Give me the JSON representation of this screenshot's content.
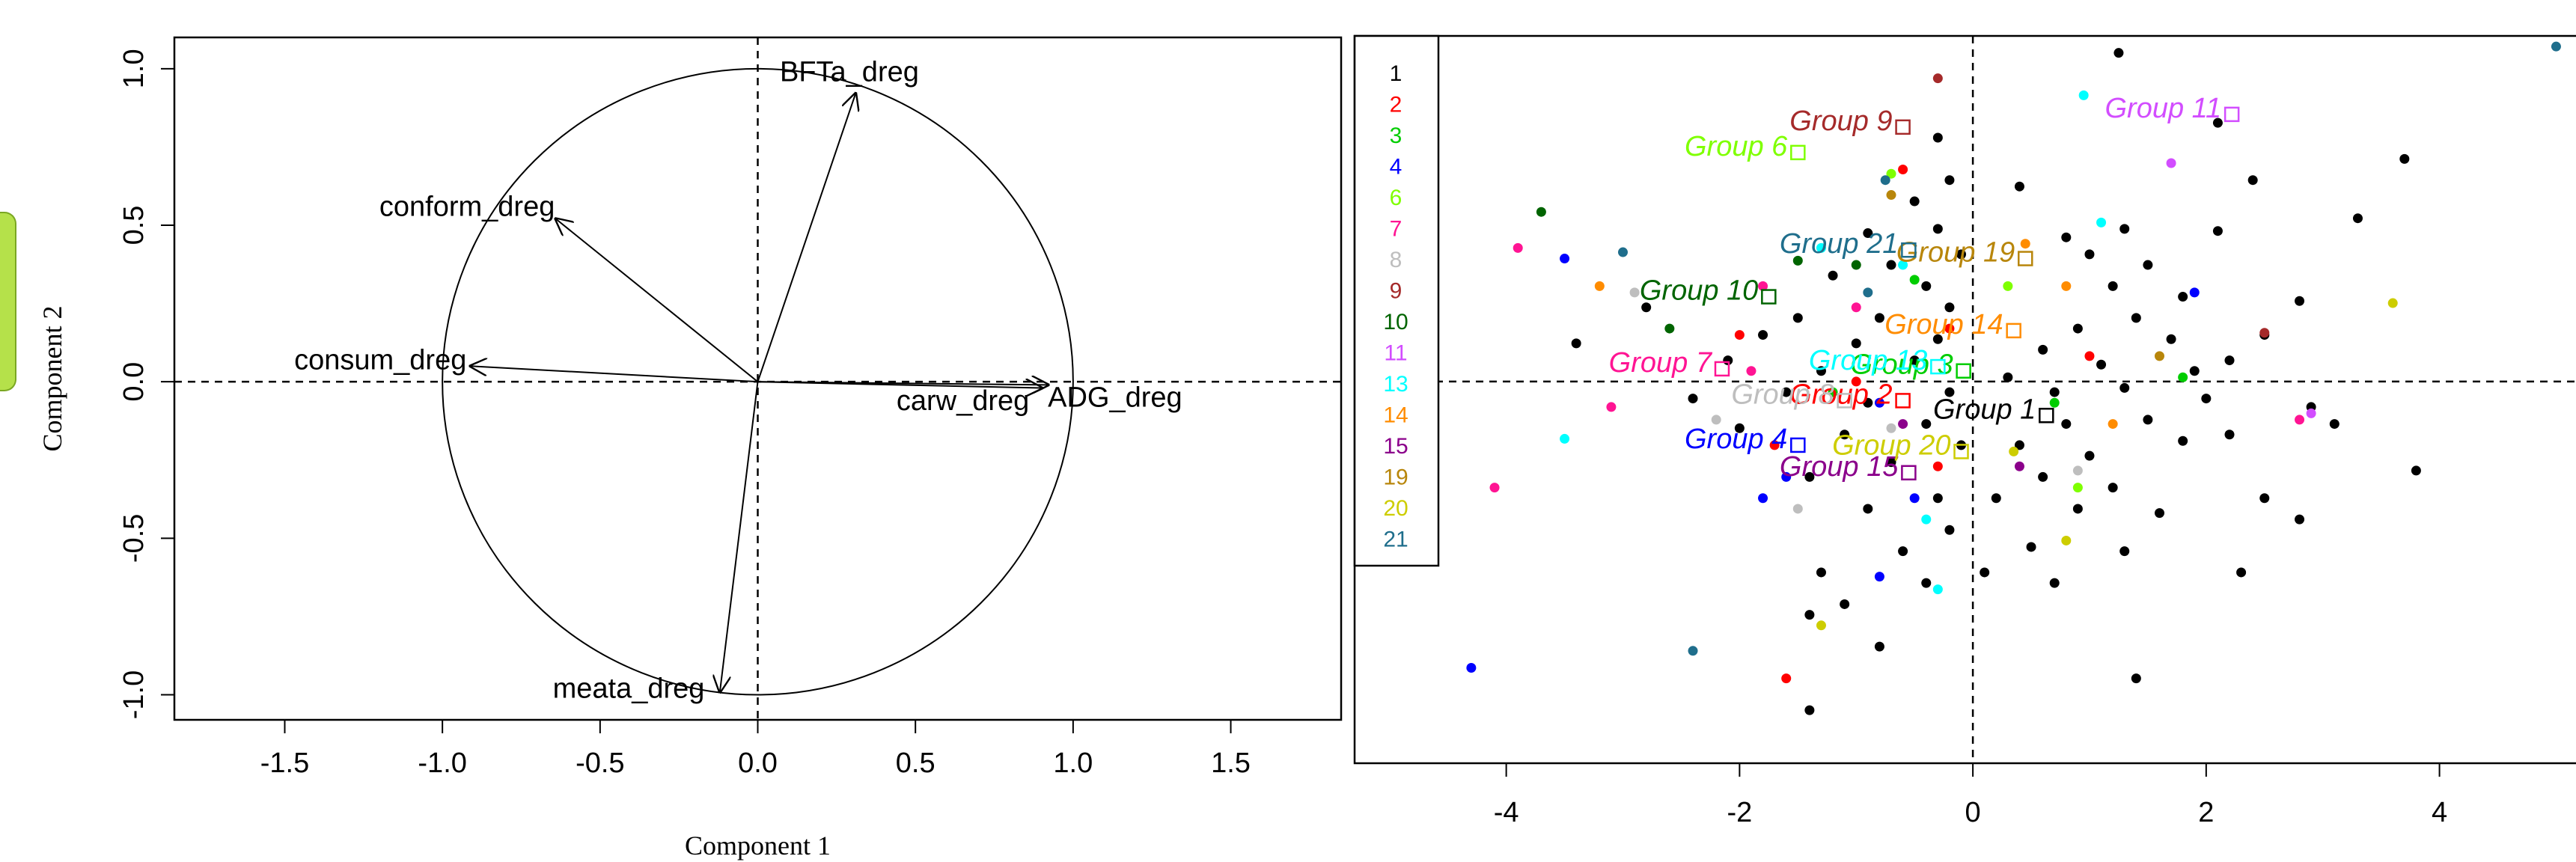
{
  "chart_data": [
    {
      "type": "correlation-circle",
      "xlabel": "Component 1",
      "ylabel": "Component 2",
      "xlim": [
        -1.85,
        1.85
      ],
      "ylim": [
        -1.08,
        1.1
      ],
      "xticks": [
        -1.5,
        -1.0,
        -0.5,
        0.0,
        0.5,
        1.0,
        1.5
      ],
      "yticks": [
        -1.0,
        -0.5,
        0.0,
        0.5,
        1.0
      ],
      "xtick_labels": [
        "-1.5",
        "-1.0",
        "-0.5",
        "0.0",
        "0.5",
        "1.0",
        "1.5"
      ],
      "ytick_labels": [
        "-1.0",
        "-0.5",
        "0.0",
        "0.5",
        "1.0"
      ],
      "unit_circle": true,
      "reference_lines": {
        "x": 0,
        "y": 0,
        "style": "dashed"
      },
      "arrows": [
        {
          "label": "BFTa_dreg",
          "x": 0.31,
          "y": 0.92
        },
        {
          "label": "conform_dreg",
          "x": -0.64,
          "y": 0.52
        },
        {
          "label": "consum_dreg",
          "x": -0.91,
          "y": 0.05
        },
        {
          "label": "carw_dreg",
          "x": 0.9,
          "y": -0.02
        },
        {
          "label": "ADG_dreg",
          "x": 0.92,
          "y": -0.01
        },
        {
          "label": "meata_dreg",
          "x": -0.12,
          "y": -0.99
        }
      ]
    },
    {
      "type": "scatter",
      "xlim": [
        -5.3,
        5.35
      ],
      "ylim": [
        -1.8,
        1.63
      ],
      "xticks": [
        -4,
        -2,
        0,
        2,
        4
      ],
      "xtick_labels": [
        "-4",
        "-2",
        "0",
        "2",
        "4"
      ],
      "reference_lines": {
        "x": 0,
        "y": 0,
        "style": "dashed"
      },
      "legend": {
        "position": "top-left",
        "entries": [
          {
            "label": "1",
            "color": "#000000"
          },
          {
            "label": "2",
            "color": "#ff0000"
          },
          {
            "label": "3",
            "color": "#00cd00"
          },
          {
            "label": "4",
            "color": "#0000ff"
          },
          {
            "label": "6",
            "color": "#7fff00"
          },
          {
            "label": "7",
            "color": "#ff1493"
          },
          {
            "label": "8",
            "color": "#bebebe"
          },
          {
            "label": "9",
            "color": "#a52a2a"
          },
          {
            "label": "10",
            "color": "#006400"
          },
          {
            "label": "11",
            "color": "#d24dff"
          },
          {
            "label": "13",
            "color": "#00ffff"
          },
          {
            "label": "14",
            "color": "#ff8c00"
          },
          {
            "label": "15",
            "color": "#8b008b"
          },
          {
            "label": "19",
            "color": "#b8860b"
          },
          {
            "label": "20",
            "color": "#cdcd00"
          },
          {
            "label": "21",
            "color": "#1f6e8c"
          }
        ]
      },
      "group_centroids": [
        {
          "label": "Group 1",
          "group": "1",
          "x": 0.63,
          "y": -0.16
        },
        {
          "label": "Group 2",
          "group": "2",
          "x": -0.6,
          "y": -0.09
        },
        {
          "label": "Group 3",
          "group": "3",
          "x": -0.08,
          "y": 0.05
        },
        {
          "label": "Group 4",
          "group": "4",
          "x": -1.5,
          "y": -0.3
        },
        {
          "label": "Group 6",
          "group": "6",
          "x": -1.5,
          "y": 1.08
        },
        {
          "label": "Group 7",
          "group": "7",
          "x": -2.15,
          "y": 0.06
        },
        {
          "label": "Group 8",
          "group": "8",
          "x": -1.1,
          "y": -0.09
        },
        {
          "label": "Group 9",
          "group": "9",
          "x": -0.6,
          "y": 1.2
        },
        {
          "label": "Group 10",
          "group": "10",
          "x": -1.75,
          "y": 0.4
        },
        {
          "label": "Group 11",
          "group": "11",
          "x": 2.22,
          "y": 1.26
        },
        {
          "label": "Group 13",
          "group": "13",
          "x": -0.3,
          "y": 0.07
        },
        {
          "label": "Group 14",
          "group": "14",
          "x": 0.35,
          "y": 0.24
        },
        {
          "label": "Group 15",
          "group": "15",
          "x": -0.55,
          "y": -0.43
        },
        {
          "label": "Group 19",
          "group": "19",
          "x": 0.45,
          "y": 0.58
        },
        {
          "label": "Group 20",
          "group": "20",
          "x": -0.1,
          "y": -0.33
        },
        {
          "label": "Group 21",
          "group": "21",
          "x": -0.55,
          "y": 0.62
        }
      ],
      "points": [
        {
          "group": "1",
          "x": 1.25,
          "y": 1.55
        },
        {
          "group": "1",
          "x": 2.1,
          "y": 1.22
        },
        {
          "group": "1",
          "x": 3.7,
          "y": 1.05
        },
        {
          "group": "1",
          "x": 2.4,
          "y": 0.95
        },
        {
          "group": "1",
          "x": 3.3,
          "y": 0.77
        },
        {
          "group": "1",
          "x": 2.1,
          "y": 0.71
        },
        {
          "group": "1",
          "x": 0.4,
          "y": 0.92
        },
        {
          "group": "1",
          "x": 0.8,
          "y": 0.68
        },
        {
          "group": "1",
          "x": 1.0,
          "y": 0.6
        },
        {
          "group": "1",
          "x": 1.3,
          "y": 0.72
        },
        {
          "group": "1",
          "x": 1.5,
          "y": 0.55
        },
        {
          "group": "1",
          "x": 1.2,
          "y": 0.45
        },
        {
          "group": "1",
          "x": 1.8,
          "y": 0.4
        },
        {
          "group": "1",
          "x": 2.8,
          "y": 0.38
        },
        {
          "group": "1",
          "x": 1.4,
          "y": 0.3
        },
        {
          "group": "1",
          "x": 0.9,
          "y": 0.25
        },
        {
          "group": "1",
          "x": 1.7,
          "y": 0.2
        },
        {
          "group": "1",
          "x": 2.5,
          "y": 0.22
        },
        {
          "group": "1",
          "x": 0.6,
          "y": 0.15
        },
        {
          "group": "1",
          "x": 1.1,
          "y": 0.08
        },
        {
          "group": "1",
          "x": 1.9,
          "y": 0.05
        },
        {
          "group": "1",
          "x": 2.2,
          "y": 0.1
        },
        {
          "group": "1",
          "x": 0.3,
          "y": 0.02
        },
        {
          "group": "1",
          "x": 0.7,
          "y": -0.05
        },
        {
          "group": "1",
          "x": 1.3,
          "y": -0.03
        },
        {
          "group": "1",
          "x": 2.0,
          "y": -0.08
        },
        {
          "group": "1",
          "x": 2.9,
          "y": -0.12
        },
        {
          "group": "1",
          "x": 3.1,
          "y": -0.2
        },
        {
          "group": "1",
          "x": 0.8,
          "y": -0.2
        },
        {
          "group": "1",
          "x": 1.5,
          "y": -0.18
        },
        {
          "group": "1",
          "x": 2.2,
          "y": -0.25
        },
        {
          "group": "1",
          "x": 0.4,
          "y": -0.3
        },
        {
          "group": "1",
          "x": 1.0,
          "y": -0.35
        },
        {
          "group": "1",
          "x": 1.8,
          "y": -0.28
        },
        {
          "group": "1",
          "x": 0.6,
          "y": -0.45
        },
        {
          "group": "1",
          "x": 1.2,
          "y": -0.5
        },
        {
          "group": "1",
          "x": 2.5,
          "y": -0.55
        },
        {
          "group": "1",
          "x": 3.8,
          "y": -0.42
        },
        {
          "group": "1",
          "x": 0.2,
          "y": -0.55
        },
        {
          "group": "1",
          "x": 0.9,
          "y": -0.6
        },
        {
          "group": "1",
          "x": 1.6,
          "y": -0.62
        },
        {
          "group": "1",
          "x": 2.8,
          "y": -0.65
        },
        {
          "group": "1",
          "x": 0.5,
          "y": -0.78
        },
        {
          "group": "1",
          "x": 1.3,
          "y": -0.8
        },
        {
          "group": "1",
          "x": 2.3,
          "y": -0.9
        },
        {
          "group": "1",
          "x": 0.1,
          "y": -0.9
        },
        {
          "group": "1",
          "x": 0.7,
          "y": -0.95
        },
        {
          "group": "1",
          "x": 1.4,
          "y": -1.4
        },
        {
          "group": "1",
          "x": -0.3,
          "y": 1.15
        },
        {
          "group": "1",
          "x": -0.2,
          "y": 0.95
        },
        {
          "group": "1",
          "x": -0.5,
          "y": 0.85
        },
        {
          "group": "1",
          "x": -0.3,
          "y": 0.72
        },
        {
          "group": "1",
          "x": -0.9,
          "y": 0.7
        },
        {
          "group": "1",
          "x": -0.1,
          "y": 0.6
        },
        {
          "group": "1",
          "x": -0.7,
          "y": 0.55
        },
        {
          "group": "1",
          "x": -0.4,
          "y": 0.45
        },
        {
          "group": "1",
          "x": -1.2,
          "y": 0.5
        },
        {
          "group": "1",
          "x": -0.2,
          "y": 0.35
        },
        {
          "group": "1",
          "x": -0.8,
          "y": 0.3
        },
        {
          "group": "1",
          "x": -1.5,
          "y": 0.3
        },
        {
          "group": "1",
          "x": -0.3,
          "y": 0.2
        },
        {
          "group": "1",
          "x": -1.0,
          "y": 0.18
        },
        {
          "group": "1",
          "x": -1.8,
          "y": 0.22
        },
        {
          "group": "1",
          "x": -0.5,
          "y": 0.1
        },
        {
          "group": "1",
          "x": -1.3,
          "y": 0.05
        },
        {
          "group": "1",
          "x": -2.1,
          "y": 0.1
        },
        {
          "group": "1",
          "x": -0.2,
          "y": -0.05
        },
        {
          "group": "1",
          "x": -0.9,
          "y": -0.1
        },
        {
          "group": "1",
          "x": -1.6,
          "y": -0.05
        },
        {
          "group": "1",
          "x": -0.4,
          "y": -0.2
        },
        {
          "group": "1",
          "x": -1.1,
          "y": -0.25
        },
        {
          "group": "1",
          "x": -0.1,
          "y": -0.3
        },
        {
          "group": "1",
          "x": -0.7,
          "y": -0.38
        },
        {
          "group": "1",
          "x": -1.4,
          "y": -0.45
        },
        {
          "group": "1",
          "x": -0.3,
          "y": -0.55
        },
        {
          "group": "1",
          "x": -0.9,
          "y": -0.6
        },
        {
          "group": "1",
          "x": -0.2,
          "y": -0.7
        },
        {
          "group": "1",
          "x": -0.6,
          "y": -0.8
        },
        {
          "group": "1",
          "x": -1.3,
          "y": -0.9
        },
        {
          "group": "1",
          "x": -0.4,
          "y": -0.95
        },
        {
          "group": "1",
          "x": -1.1,
          "y": -1.05
        },
        {
          "group": "1",
          "x": -1.4,
          "y": -1.1
        },
        {
          "group": "1",
          "x": -0.8,
          "y": -1.25
        },
        {
          "group": "1",
          "x": -1.4,
          "y": -1.55
        },
        {
          "group": "1",
          "x": -2.4,
          "y": -0.08
        },
        {
          "group": "1",
          "x": -2.0,
          "y": -0.22
        },
        {
          "group": "1",
          "x": -2.8,
          "y": 0.35
        },
        {
          "group": "1",
          "x": -3.4,
          "y": 0.18
        },
        {
          "group": "2",
          "x": -0.6,
          "y": 1.0
        },
        {
          "group": "2",
          "x": -1.0,
          "y": 0.0
        },
        {
          "group": "2",
          "x": -0.2,
          "y": 0.25
        },
        {
          "group": "2",
          "x": 1.0,
          "y": 0.12
        },
        {
          "group": "2",
          "x": -2.0,
          "y": 0.22
        },
        {
          "group": "2",
          "x": -0.3,
          "y": -0.4
        },
        {
          "group": "2",
          "x": -1.6,
          "y": -1.4
        },
        {
          "group": "2",
          "x": -1.7,
          "y": -0.3
        },
        {
          "group": "3",
          "x": -0.5,
          "y": 0.48
        },
        {
          "group": "3",
          "x": 0.7,
          "y": -0.1
        },
        {
          "group": "3",
          "x": 1.8,
          "y": 0.02
        },
        {
          "group": "3",
          "x": -1.2,
          "y": -0.05
        },
        {
          "group": "4",
          "x": -3.5,
          "y": 0.58
        },
        {
          "group": "4",
          "x": -4.3,
          "y": -1.35
        },
        {
          "group": "4",
          "x": -1.6,
          "y": -0.45
        },
        {
          "group": "4",
          "x": -1.8,
          "y": -0.55
        },
        {
          "group": "4",
          "x": -0.8,
          "y": -0.1
        },
        {
          "group": "4",
          "x": -0.5,
          "y": -0.55
        },
        {
          "group": "4",
          "x": 1.9,
          "y": 0.42
        },
        {
          "group": "4",
          "x": -0.8,
          "y": -0.92
        },
        {
          "group": "6",
          "x": -0.7,
          "y": 0.98
        },
        {
          "group": "6",
          "x": 0.3,
          "y": 0.45
        },
        {
          "group": "6",
          "x": 0.9,
          "y": -0.5
        },
        {
          "group": "7",
          "x": -3.9,
          "y": 0.63
        },
        {
          "group": "7",
          "x": -4.1,
          "y": -0.5
        },
        {
          "group": "7",
          "x": -3.1,
          "y": -0.12
        },
        {
          "group": "7",
          "x": -1.9,
          "y": 0.05
        },
        {
          "group": "7",
          "x": -1.0,
          "y": 0.35
        },
        {
          "group": "7",
          "x": 2.8,
          "y": -0.18
        },
        {
          "group": "7",
          "x": -1.8,
          "y": 0.45
        },
        {
          "group": "8",
          "x": -2.9,
          "y": 0.42
        },
        {
          "group": "8",
          "x": -2.2,
          "y": -0.18
        },
        {
          "group": "8",
          "x": -1.5,
          "y": -0.6
        },
        {
          "group": "8",
          "x": -0.7,
          "y": -0.22
        },
        {
          "group": "8",
          "x": 0.9,
          "y": -0.42
        },
        {
          "group": "9",
          "x": -0.3,
          "y": 1.43
        },
        {
          "group": "9",
          "x": 2.5,
          "y": 0.23
        },
        {
          "group": "10",
          "x": -3.7,
          "y": 0.8
        },
        {
          "group": "10",
          "x": -2.6,
          "y": 0.25
        },
        {
          "group": "10",
          "x": -1.5,
          "y": 0.57
        },
        {
          "group": "10",
          "x": -1.0,
          "y": 0.55
        },
        {
          "group": "11",
          "x": 1.7,
          "y": 1.03
        },
        {
          "group": "11",
          "x": 2.9,
          "y": -0.15
        },
        {
          "group": "13",
          "x": 0.95,
          "y": 1.35
        },
        {
          "group": "13",
          "x": -1.3,
          "y": 0.63
        },
        {
          "group": "13",
          "x": -0.6,
          "y": 0.55
        },
        {
          "group": "13",
          "x": 1.1,
          "y": 0.75
        },
        {
          "group": "13",
          "x": -3.5,
          "y": -0.27
        },
        {
          "group": "13",
          "x": -0.4,
          "y": -0.65
        },
        {
          "group": "13",
          "x": -0.3,
          "y": -0.98
        },
        {
          "group": "14",
          "x": -3.2,
          "y": 0.45
        },
        {
          "group": "14",
          "x": 0.45,
          "y": 0.65
        },
        {
          "group": "14",
          "x": 0.8,
          "y": 0.45
        },
        {
          "group": "14",
          "x": 1.2,
          "y": -0.2
        },
        {
          "group": "15",
          "x": -0.6,
          "y": -0.2
        },
        {
          "group": "15",
          "x": 0.4,
          "y": -0.4
        },
        {
          "group": "19",
          "x": -0.7,
          "y": 0.88
        },
        {
          "group": "19",
          "x": 1.6,
          "y": 0.12
        },
        {
          "group": "20",
          "x": 3.6,
          "y": 0.37
        },
        {
          "group": "20",
          "x": 0.35,
          "y": -0.33
        },
        {
          "group": "20",
          "x": 0.8,
          "y": -0.75
        },
        {
          "group": "20",
          "x": -1.3,
          "y": -1.15
        },
        {
          "group": "21",
          "x": 5.0,
          "y": 1.58
        },
        {
          "group": "21",
          "x": -3.0,
          "y": 0.61
        },
        {
          "group": "21",
          "x": -0.75,
          "y": 0.95
        },
        {
          "group": "21",
          "x": -2.4,
          "y": -1.27
        },
        {
          "group": "21",
          "x": -0.9,
          "y": 0.42
        }
      ]
    }
  ]
}
